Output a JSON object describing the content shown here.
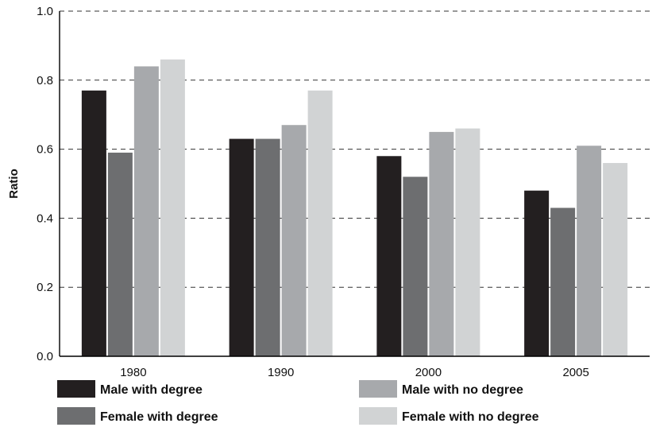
{
  "chart_data": {
    "type": "bar",
    "title": "",
    "xlabel": "",
    "ylabel": "Ratio",
    "ylim": [
      0,
      1.0
    ],
    "yticks": [
      "0.0",
      "0.2",
      "0.4",
      "0.6",
      "0.8",
      "1.0"
    ],
    "grid": true,
    "legend_position": "bottom",
    "categories": [
      "1980",
      "1990",
      "2000",
      "2005"
    ],
    "series": [
      {
        "name": "Male with degree",
        "color": "#231f20",
        "values": [
          0.77,
          0.63,
          0.58,
          0.48
        ]
      },
      {
        "name": "Female with degree",
        "color": "#6d6e70",
        "values": [
          0.59,
          0.63,
          0.52,
          0.43
        ]
      },
      {
        "name": "Male with no degree",
        "color": "#a7a9ac",
        "values": [
          0.84,
          0.67,
          0.65,
          0.61
        ]
      },
      {
        "name": "Female with no degree",
        "color": "#d1d3d4",
        "values": [
          0.86,
          0.77,
          0.66,
          0.56
        ]
      }
    ]
  }
}
